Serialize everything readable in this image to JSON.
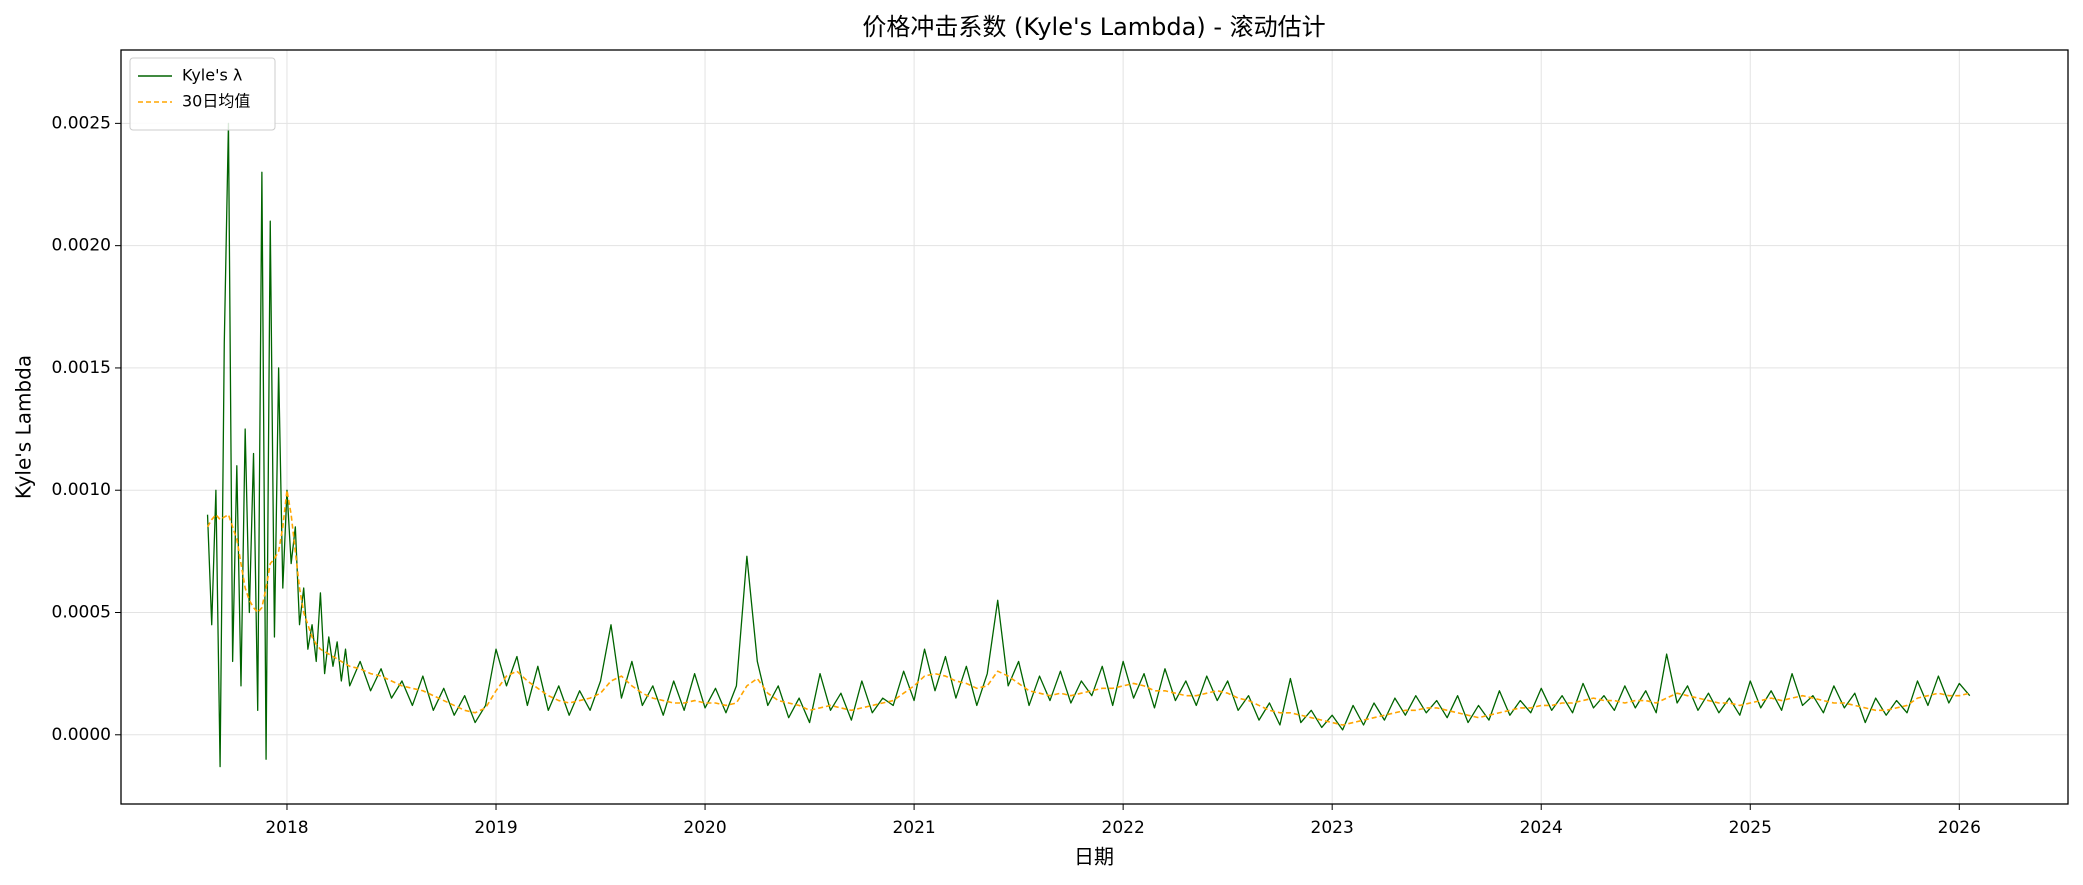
{
  "chart_data": {
    "type": "line",
    "title": "价格冲击系数 (Kyle's Lambda) - 滚动估计",
    "xlabel": "日期",
    "ylabel": "Kyle's Lambda",
    "grid": true,
    "legend": "upper left",
    "xlim": [
      2017.206,
      2026.52
    ],
    "xticks": [
      2018,
      2019,
      2020,
      2021,
      2022,
      2023,
      2024,
      2025,
      2026
    ],
    "ylim": [
      -0.000283,
      0.0028
    ],
    "yticks": [
      {
        "value": 0,
        "label": "0.0000"
      },
      {
        "value": 0.0005,
        "label": "0.0005"
      },
      {
        "value": 0.001,
        "label": "0.0010"
      },
      {
        "value": 0.0015,
        "label": "0.0015"
      },
      {
        "value": 0.002,
        "label": "0.0020"
      },
      {
        "value": 0.0025,
        "label": "0.0025"
      }
    ],
    "x": [
      2017.62,
      2017.64,
      2017.66,
      2017.68,
      2017.7,
      2017.72,
      2017.74,
      2017.76,
      2017.78,
      2017.8,
      2017.82,
      2017.84,
      2017.86,
      2017.88,
      2017.9,
      2017.92,
      2017.94,
      2017.96,
      2017.98,
      2018.0,
      2018.02,
      2018.04,
      2018.06,
      2018.08,
      2018.1,
      2018.12,
      2018.14,
      2018.16,
      2018.18,
      2018.2,
      2018.22,
      2018.24,
      2018.26,
      2018.28,
      2018.3,
      2018.35,
      2018.4,
      2018.45,
      2018.5,
      2018.55,
      2018.6,
      2018.65,
      2018.7,
      2018.75,
      2018.8,
      2018.85,
      2018.9,
      2018.95,
      2019.0,
      2019.05,
      2019.1,
      2019.15,
      2019.2,
      2019.25,
      2019.3,
      2019.35,
      2019.4,
      2019.45,
      2019.5,
      2019.55,
      2019.6,
      2019.65,
      2019.7,
      2019.75,
      2019.8,
      2019.85,
      2019.9,
      2019.95,
      2020.0,
      2020.05,
      2020.1,
      2020.15,
      2020.2,
      2020.25,
      2020.3,
      2020.35,
      2020.4,
      2020.45,
      2020.5,
      2020.55,
      2020.6,
      2020.65,
      2020.7,
      2020.75,
      2020.8,
      2020.85,
      2020.9,
      2020.95,
      2021.0,
      2021.05,
      2021.1,
      2021.15,
      2021.2,
      2021.25,
      2021.3,
      2021.35,
      2021.4,
      2021.45,
      2021.5,
      2021.55,
      2021.6,
      2021.65,
      2021.7,
      2021.75,
      2021.8,
      2021.85,
      2021.9,
      2021.95,
      2022.0,
      2022.05,
      2022.1,
      2022.15,
      2022.2,
      2022.25,
      2022.3,
      2022.35,
      2022.4,
      2022.45,
      2022.5,
      2022.55,
      2022.6,
      2022.65,
      2022.7,
      2022.75,
      2022.8,
      2022.85,
      2022.9,
      2022.95,
      2023.0,
      2023.05,
      2023.1,
      2023.15,
      2023.2,
      2023.25,
      2023.3,
      2023.35,
      2023.4,
      2023.45,
      2023.5,
      2023.55,
      2023.6,
      2023.65,
      2023.7,
      2023.75,
      2023.8,
      2023.85,
      2023.9,
      2023.95,
      2024.0,
      2024.05,
      2024.1,
      2024.15,
      2024.2,
      2024.25,
      2024.3,
      2024.35,
      2024.4,
      2024.45,
      2024.5,
      2024.55,
      2024.6,
      2024.65,
      2024.7,
      2024.75,
      2024.8,
      2024.85,
      2024.9,
      2024.95,
      2025.0,
      2025.05,
      2025.1,
      2025.15,
      2025.2,
      2025.25,
      2025.3,
      2025.35,
      2025.4,
      2025.45,
      2025.5,
      2025.55,
      2025.6,
      2025.65,
      2025.7,
      2025.75,
      2025.8,
      2025.85,
      2025.9,
      2025.95,
      2026.0,
      2026.05
    ],
    "series": [
      {
        "name": "Kyle's λ",
        "color": "#006400",
        "dash": false,
        "values": [
          0.0009,
          0.00045,
          0.001,
          -0.00013,
          0.0016,
          0.0025,
          0.0003,
          0.0011,
          0.0002,
          0.00125,
          0.0005,
          0.00115,
          0.0001,
          0.0023,
          -0.0001,
          0.0021,
          0.0004,
          0.0015,
          0.0006,
          0.001,
          0.0007,
          0.00085,
          0.00045,
          0.0006,
          0.00035,
          0.00045,
          0.0003,
          0.00058,
          0.00025,
          0.0004,
          0.00028,
          0.00038,
          0.00022,
          0.00035,
          0.0002,
          0.0003,
          0.00018,
          0.00027,
          0.00015,
          0.00022,
          0.00012,
          0.00024,
          0.0001,
          0.00019,
          8e-05,
          0.00016,
          5e-05,
          0.00012,
          0.00035,
          0.0002,
          0.00032,
          0.00012,
          0.00028,
          0.0001,
          0.0002,
          8e-05,
          0.00018,
          0.0001,
          0.00022,
          0.00045,
          0.00015,
          0.0003,
          0.00012,
          0.0002,
          8e-05,
          0.00022,
          0.0001,
          0.00025,
          0.00011,
          0.00019,
          9e-05,
          0.0002,
          0.00073,
          0.0003,
          0.00012,
          0.0002,
          7e-05,
          0.00015,
          5e-05,
          0.00025,
          0.0001,
          0.00017,
          6e-05,
          0.00022,
          9e-05,
          0.00015,
          0.00012,
          0.00026,
          0.00014,
          0.00035,
          0.00018,
          0.00032,
          0.00015,
          0.00028,
          0.00012,
          0.00025,
          0.00055,
          0.0002,
          0.0003,
          0.00012,
          0.00024,
          0.00014,
          0.00026,
          0.00013,
          0.00022,
          0.00016,
          0.00028,
          0.00012,
          0.0003,
          0.00015,
          0.00025,
          0.00011,
          0.00027,
          0.00014,
          0.00022,
          0.00012,
          0.00024,
          0.00014,
          0.00022,
          0.0001,
          0.00016,
          6e-05,
          0.00013,
          4e-05,
          0.00023,
          5e-05,
          0.0001,
          3e-05,
          8e-05,
          2e-05,
          0.00012,
          4e-05,
          0.00013,
          6e-05,
          0.00015,
          8e-05,
          0.00016,
          9e-05,
          0.00014,
          7e-05,
          0.00016,
          5e-05,
          0.00012,
          6e-05,
          0.00018,
          8e-05,
          0.00014,
          9e-05,
          0.00019,
          0.0001,
          0.00016,
          9e-05,
          0.00021,
          0.00011,
          0.00016,
          0.0001,
          0.0002,
          0.00011,
          0.00018,
          9e-05,
          0.00033,
          0.00013,
          0.0002,
          0.0001,
          0.00017,
          9e-05,
          0.00015,
          8e-05,
          0.00022,
          0.00011,
          0.00018,
          0.0001,
          0.00025,
          0.00012,
          0.00016,
          9e-05,
          0.0002,
          0.00011,
          0.00017,
          5e-05,
          0.00015,
          8e-05,
          0.00014,
          9e-05,
          0.00022,
          0.00012,
          0.00024,
          0.00013,
          0.00021,
          0.00016
        ]
      },
      {
        "name": "30日均值",
        "color": "#ffa500",
        "dash": true,
        "values": [
          0.00085,
          0.00088,
          0.0009,
          0.00088,
          0.00089,
          0.0009,
          0.00085,
          0.0008,
          0.0007,
          0.0006,
          0.00055,
          0.00052,
          0.0005,
          0.00052,
          0.0006,
          0.0007,
          0.00072,
          0.00075,
          0.00085,
          0.001,
          0.0009,
          0.00075,
          0.0006,
          0.0005,
          0.00045,
          0.0004,
          0.00037,
          0.00035,
          0.00034,
          0.00033,
          0.00032,
          0.00031,
          0.0003,
          0.00029,
          0.00028,
          0.00027,
          0.00025,
          0.00024,
          0.00022,
          0.0002,
          0.00019,
          0.00018,
          0.00016,
          0.00014,
          0.00012,
          0.0001,
          9e-05,
          0.00011,
          0.00018,
          0.00024,
          0.00026,
          0.00022,
          0.00019,
          0.00016,
          0.00014,
          0.00013,
          0.00014,
          0.00015,
          0.00017,
          0.00022,
          0.00024,
          0.0002,
          0.00017,
          0.00015,
          0.00014,
          0.00013,
          0.00013,
          0.00014,
          0.00013,
          0.00013,
          0.00012,
          0.00013,
          0.0002,
          0.00023,
          0.00017,
          0.00014,
          0.00013,
          0.00012,
          0.0001,
          0.00011,
          0.00012,
          0.00011,
          0.0001,
          0.00011,
          0.00012,
          0.00013,
          0.00014,
          0.00017,
          0.0002,
          0.00024,
          0.00025,
          0.00024,
          0.00022,
          0.00021,
          0.00019,
          0.0002,
          0.00026,
          0.00024,
          0.00021,
          0.00018,
          0.00017,
          0.00016,
          0.00017,
          0.00016,
          0.00017,
          0.00018,
          0.00019,
          0.00019,
          0.0002,
          0.00021,
          0.0002,
          0.00018,
          0.00018,
          0.00017,
          0.00016,
          0.00016,
          0.00017,
          0.00018,
          0.00017,
          0.00015,
          0.00014,
          0.00012,
          0.0001,
          9e-05,
          9e-05,
          8e-05,
          7e-05,
          6e-05,
          5e-05,
          4e-05,
          5e-05,
          6e-05,
          7e-05,
          8e-05,
          9e-05,
          0.0001,
          0.0001,
          0.00011,
          0.00011,
          0.0001,
          9e-05,
          8e-05,
          7e-05,
          8e-05,
          9e-05,
          0.0001,
          0.00011,
          0.00011,
          0.00012,
          0.00012,
          0.00013,
          0.00013,
          0.00014,
          0.00015,
          0.00014,
          0.00014,
          0.00013,
          0.00014,
          0.00014,
          0.00013,
          0.00015,
          0.00017,
          0.00016,
          0.00015,
          0.00014,
          0.00013,
          0.00013,
          0.00012,
          0.00013,
          0.00014,
          0.00015,
          0.00014,
          0.00015,
          0.00016,
          0.00015,
          0.00014,
          0.00013,
          0.00013,
          0.00012,
          0.00011,
          0.0001,
          0.0001,
          0.00011,
          0.00012,
          0.00015,
          0.00016,
          0.00017,
          0.00016,
          0.00016,
          0.00017
        ]
      }
    ]
  }
}
